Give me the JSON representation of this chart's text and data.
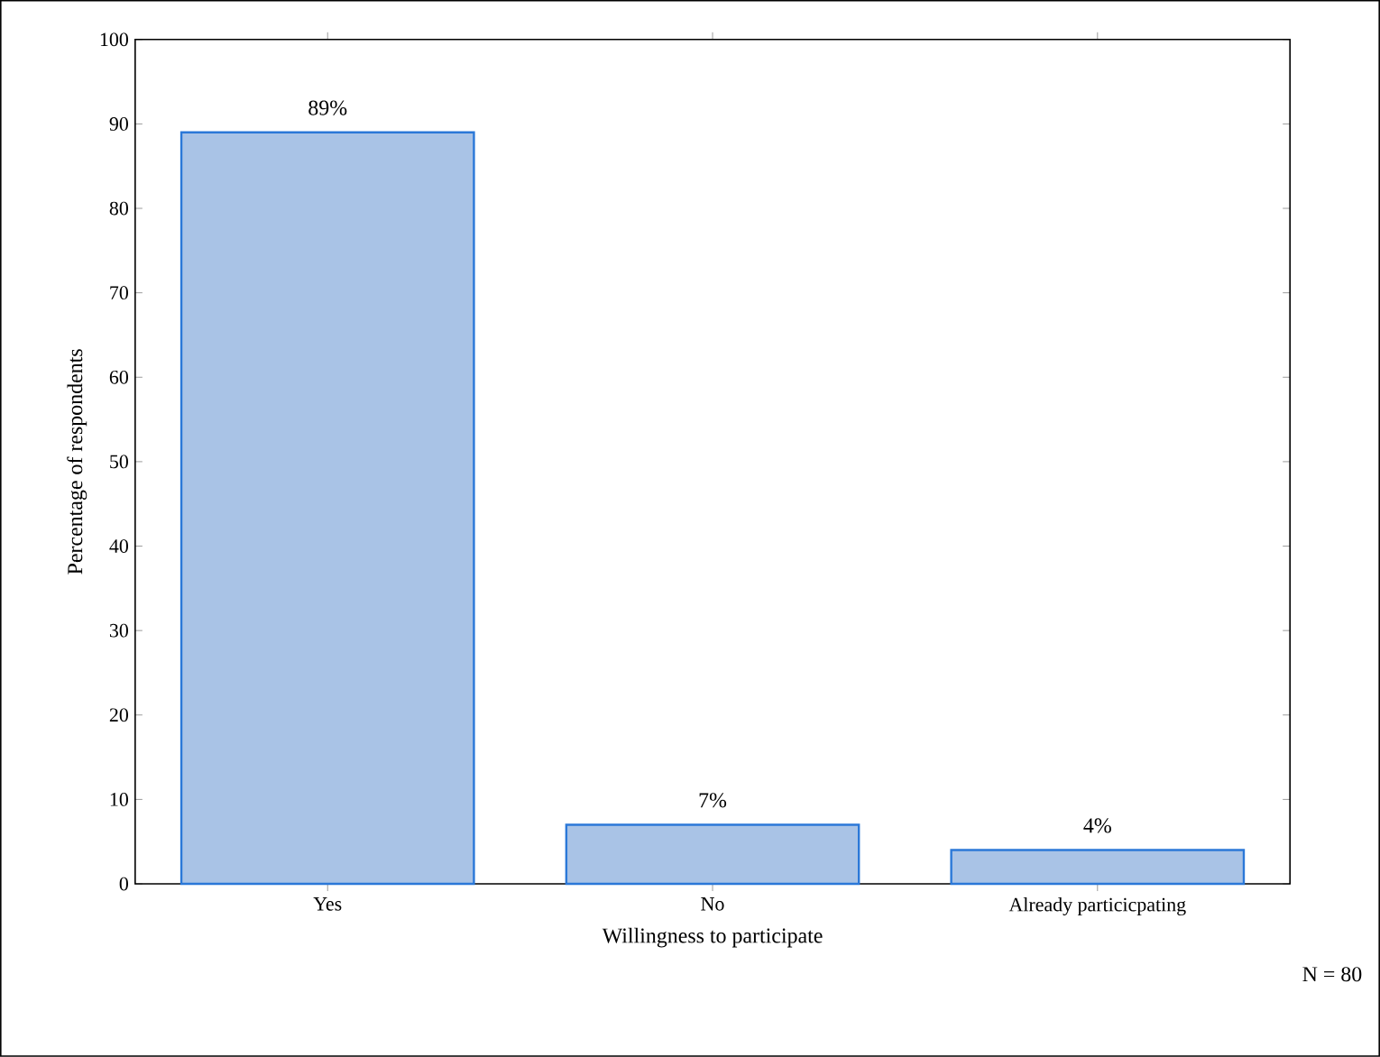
{
  "chart_data": {
    "type": "bar",
    "xlabel": "Willingness to participate",
    "ylabel": "Percentage of respondents",
    "categories": [
      "Yes",
      "No",
      "Already particicpating"
    ],
    "values": [
      89,
      7,
      4
    ],
    "value_labels": [
      "89%",
      "7%",
      "4%"
    ],
    "color": "#a9c3e6",
    "ylim": [
      0,
      100
    ],
    "yticks": [
      0,
      10,
      20,
      30,
      40,
      50,
      60,
      70,
      80,
      90,
      100
    ],
    "annotations": [
      "N = 80"
    ]
  }
}
